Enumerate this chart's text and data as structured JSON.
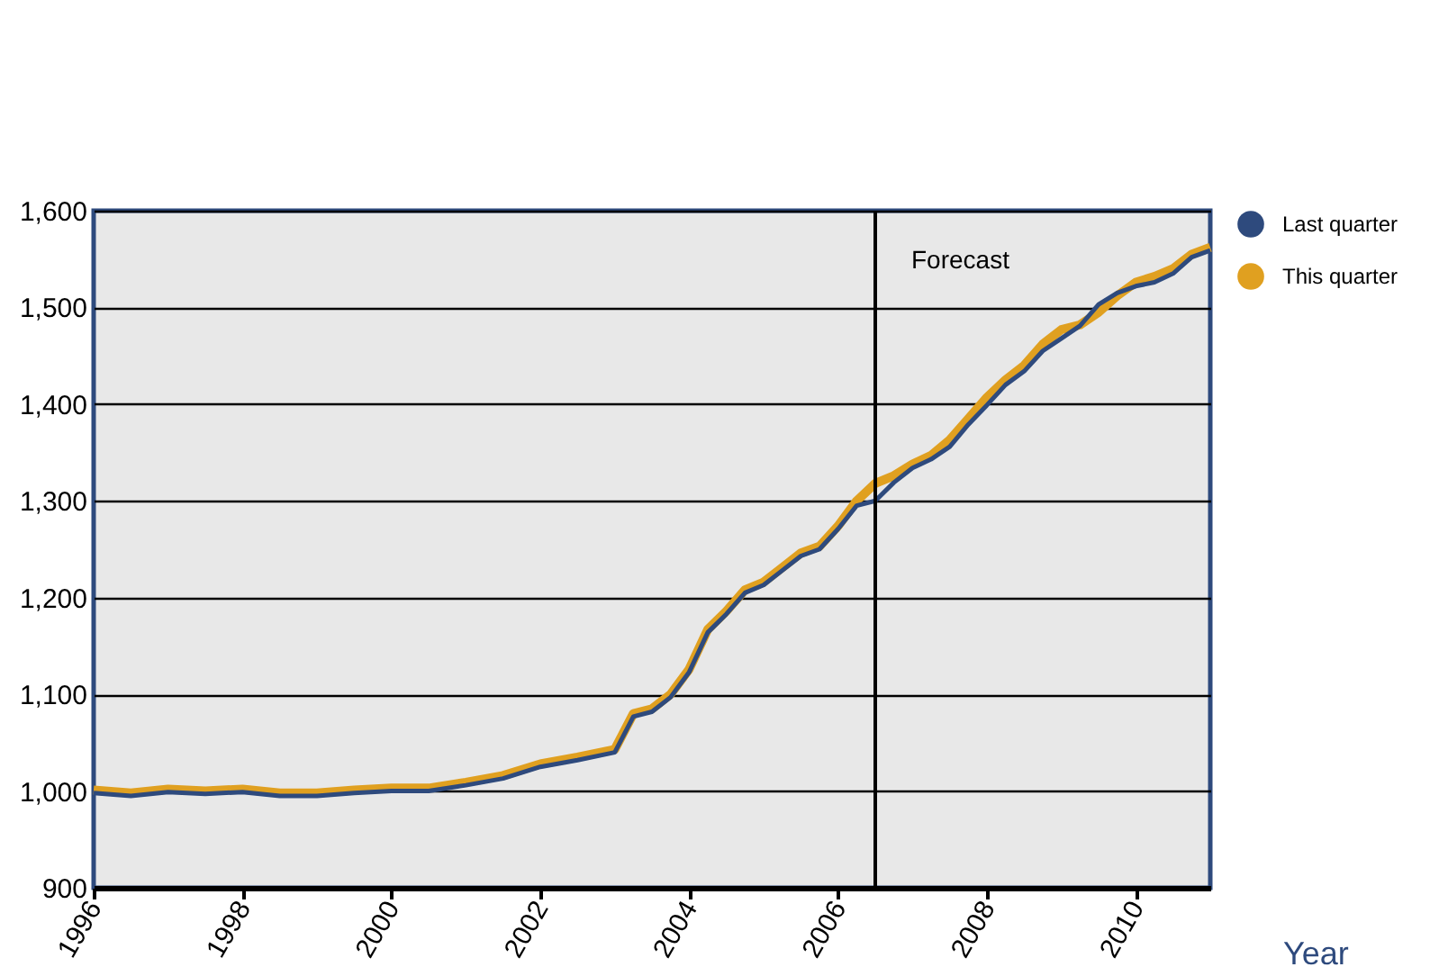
{
  "chart_data": {
    "type": "line",
    "xlabel": "Year",
    "x": [
      1996,
      1996.5,
      1997,
      1997.5,
      1998,
      1998.5,
      1999,
      1999.5,
      2000,
      2000.5,
      2001,
      2001.5,
      2002,
      2002.5,
      2003,
      2003.25,
      2003.5,
      2003.75,
      2004,
      2004.25,
      2004.5,
      2004.75,
      2005,
      2005.25,
      2005.5,
      2005.75,
      2006,
      2006.25,
      2006.5,
      2006.75,
      2007,
      2007.25,
      2007.5,
      2007.75,
      2008,
      2008.25,
      2008.5,
      2008.75,
      2009,
      2009.25,
      2009.5,
      2009.75,
      2010,
      2010.25,
      2010.5,
      2010.75,
      2011
    ],
    "series": [
      {
        "name": "Last quarter",
        "color": "#2e4a7d",
        "values": [
          998,
          995,
          999,
          997,
          999,
          995,
          995,
          998,
          1000,
          1000,
          1006,
          1013,
          1025,
          1032,
          1040,
          1077,
          1082,
          1097,
          1123,
          1164,
          1183,
          1205,
          1213,
          1228,
          1243,
          1250,
          1271,
          1295,
          1300,
          1319,
          1334,
          1343,
          1356,
          1379,
          1399,
          1420,
          1434,
          1455,
          1468,
          1481,
          1503,
          1515,
          1522,
          1526,
          1535,
          1552,
          1559
        ]
      },
      {
        "name": "This quarter",
        "color": "#e0a020",
        "values": [
          1001,
          998,
          1002,
          1000,
          1002,
          998,
          998,
          1001,
          1003,
          1003,
          1009,
          1016,
          1028,
          1035,
          1043,
          1080,
          1085,
          1100,
          1126,
          1167,
          1186,
          1208,
          1216,
          1231,
          1246,
          1253,
          1274,
          1300,
          1318,
          1326,
          1338,
          1347,
          1363,
          1385,
          1407,
          1425,
          1440,
          1462,
          1477,
          1482,
          1495,
          1512,
          1526,
          1532,
          1540,
          1555,
          1562
        ]
      }
    ],
    "xlim": [
      1996,
      2011
    ],
    "xticks": [
      1996,
      1998,
      2000,
      2002,
      2004,
      2006,
      2008,
      2010
    ],
    "ylim": [
      900,
      1600
    ],
    "yticks": [
      900,
      {
        "value": 1000,
        "label": "1,000"
      },
      {
        "value": 1100,
        "label": "1,100"
      },
      {
        "value": 1200,
        "label": "1,200"
      },
      {
        "value": 1300,
        "label": "1,300"
      },
      {
        "value": 1400,
        "label": "1,400"
      },
      {
        "value": 1500,
        "label": "1,500"
      },
      {
        "value": 1600,
        "label": "1,600"
      }
    ],
    "grid": "y",
    "legend": "right",
    "marker": "none",
    "line_style": "solid",
    "ref_lines": [
      {
        "axis": "x",
        "value": 2006.5,
        "label": "Forecast",
        "color": "#000000"
      }
    ]
  }
}
